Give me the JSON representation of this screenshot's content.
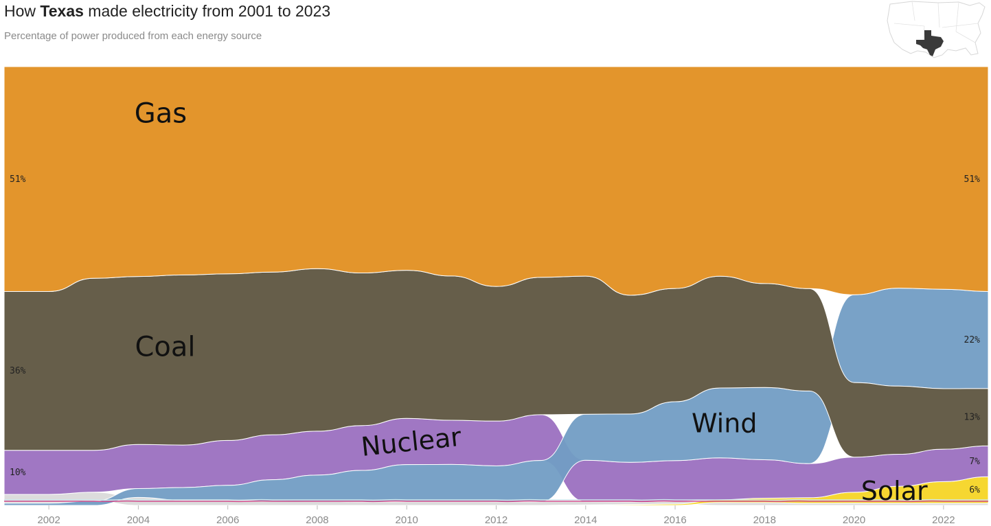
{
  "header": {
    "title_prefix": "How ",
    "title_bold": "Texas",
    "title_suffix": " made electricity from 2001 to 2023",
    "subtitle": "Percentage of power produced from each energy source"
  },
  "map_icon": "us-map-texas-highlighted-icon",
  "colors": {
    "Gas": "#e3952c",
    "Coal": "#665e4a",
    "Wind": "#729dc4",
    "Nuclear": "#a077c3",
    "Solar": "#f6d731",
    "Other": "#dcdcdc",
    "Other2": "#cfe4ec",
    "Other3": "#d24d8c",
    "background": "#ffffff",
    "tick_text": "#8a8a8a"
  },
  "chart_data": {
    "type": "area",
    "x": [
      2001,
      2002,
      2003,
      2004,
      2005,
      2006,
      2007,
      2008,
      2009,
      2010,
      2011,
      2012,
      2013,
      2014,
      2015,
      2016,
      2017,
      2018,
      2019,
      2020,
      2021,
      2022,
      2023
    ],
    "xticks": [
      "2002",
      "2004",
      "2006",
      "2008",
      "2010",
      "2012",
      "2014",
      "2016",
      "2018",
      "2020",
      "2022"
    ],
    "xtick_values": [
      2002,
      2004,
      2006,
      2008,
      2010,
      2012,
      2014,
      2016,
      2018,
      2020,
      2022
    ],
    "ylim": [
      0,
      100
    ],
    "stack_order_note": "bumps",
    "series": [
      {
        "name": "Gas",
        "values": [
          51,
          51,
          48,
          47.5,
          49,
          48.5,
          48,
          46,
          46,
          44,
          45,
          49,
          46,
          45.5,
          52,
          49,
          45,
          48,
          52,
          52,
          52,
          51.5,
          51
        ]
      },
      {
        "name": "Coal",
        "values": [
          36,
          36,
          39,
          38,
          40,
          39,
          38,
          37,
          34,
          32,
          31,
          30,
          30,
          30,
          27,
          25,
          24,
          23,
          24,
          17,
          16,
          14,
          13
        ]
      },
      {
        "name": "Wind",
        "values": [
          0.5,
          0.5,
          1,
          2,
          3,
          3.5,
          5,
          6,
          7,
          8,
          8,
          8,
          9,
          10,
          11,
          13,
          15,
          16,
          17,
          20,
          23,
          23,
          22
        ]
      },
      {
        "name": "Nuclear",
        "values": [
          10,
          10,
          9.5,
          10,
          10,
          10.5,
          10.5,
          10,
          10,
          10,
          9.5,
          10,
          10,
          9,
          9,
          9,
          9,
          8.5,
          8,
          8,
          7.5,
          7.5,
          7
        ]
      },
      {
        "name": "Solar",
        "values": [
          0,
          0,
          0,
          0,
          0,
          0,
          0,
          0,
          0,
          0,
          0,
          0,
          0,
          0.1,
          0.2,
          0.3,
          0.6,
          1,
          1.3,
          2.5,
          4,
          5,
          6
        ]
      },
      {
        "name": "Other",
        "values": [
          2,
          2,
          2,
          1.8,
          1.2,
          1.2,
          1,
          0.9,
          0.8,
          0.8,
          0.8,
          0.8,
          0.8,
          0.7,
          0.6,
          0.6,
          0.6,
          0.6,
          0.5,
          0.5,
          0.5,
          0.5,
          0.5
        ]
      }
    ],
    "labels": [
      {
        "name": "Gas",
        "text": "Gas"
      },
      {
        "name": "Coal",
        "text": "Coal"
      },
      {
        "name": "Nuclear",
        "text": "Nuclear"
      },
      {
        "name": "Wind",
        "text": "Wind"
      },
      {
        "name": "Solar",
        "text": "Solar"
      }
    ],
    "start_labels": [
      {
        "series": "Gas",
        "text": "51%"
      },
      {
        "series": "Coal",
        "text": "36%"
      },
      {
        "series": "Nuclear",
        "text": "10%"
      }
    ],
    "end_labels": [
      {
        "series": "Gas",
        "text": "51%"
      },
      {
        "series": "Wind",
        "text": "22%"
      },
      {
        "series": "Coal",
        "text": "13%"
      },
      {
        "series": "Nuclear",
        "text": "7%"
      },
      {
        "series": "Solar",
        "text": "6%"
      }
    ]
  }
}
